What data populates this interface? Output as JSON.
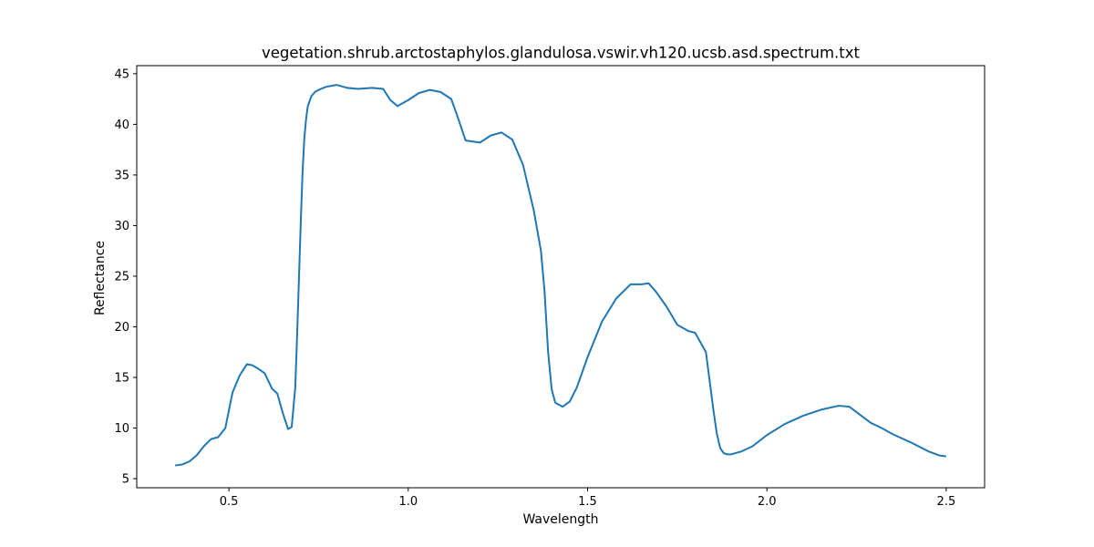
{
  "chart_data": {
    "type": "line",
    "title": "vegetation.shrub.arctostaphylos.glandulosa.vswir.vh120.ucsb.asd.spectrum.txt",
    "xlabel": "Wavelength",
    "ylabel": "Reflectance",
    "xlim": [
      0.243,
      2.607
    ],
    "ylim": [
      4.1,
      45.8
    ],
    "xticks": [
      0.5,
      1.0,
      1.5,
      2.0,
      2.5
    ],
    "xtick_labels": [
      "0.5",
      "1.0",
      "1.5",
      "2.0",
      "2.5"
    ],
    "yticks": [
      5,
      10,
      15,
      20,
      25,
      30,
      35,
      40,
      45
    ],
    "ytick_labels": [
      "5",
      "10",
      "15",
      "20",
      "25",
      "30",
      "35",
      "40",
      "45"
    ],
    "grid": false,
    "series": [
      {
        "name": "spectrum",
        "color": "#1f77b4",
        "x": [
          0.35,
          0.37,
          0.39,
          0.41,
          0.43,
          0.45,
          0.47,
          0.49,
          0.51,
          0.53,
          0.55,
          0.565,
          0.58,
          0.6,
          0.62,
          0.635,
          0.65,
          0.665,
          0.675,
          0.685,
          0.69,
          0.695,
          0.7,
          0.705,
          0.71,
          0.715,
          0.72,
          0.73,
          0.74,
          0.75,
          0.77,
          0.8,
          0.83,
          0.86,
          0.9,
          0.93,
          0.95,
          0.97,
          1.0,
          1.03,
          1.06,
          1.09,
          1.12,
          1.14,
          1.16,
          1.2,
          1.23,
          1.26,
          1.29,
          1.32,
          1.35,
          1.37,
          1.38,
          1.39,
          1.4,
          1.41,
          1.43,
          1.45,
          1.47,
          1.5,
          1.54,
          1.58,
          1.62,
          1.65,
          1.67,
          1.69,
          1.72,
          1.75,
          1.78,
          1.8,
          1.83,
          1.85,
          1.86,
          1.87,
          1.88,
          1.89,
          1.9,
          1.93,
          1.96,
          2.0,
          2.05,
          2.1,
          2.15,
          2.2,
          2.23,
          2.26,
          2.29,
          2.32,
          2.35,
          2.4,
          2.45,
          2.48,
          2.5
        ],
        "values": [
          6.3,
          6.4,
          6.7,
          7.3,
          8.2,
          8.9,
          9.1,
          10.0,
          13.5,
          15.2,
          16.3,
          16.2,
          15.9,
          15.4,
          13.9,
          13.4,
          11.5,
          9.9,
          10.1,
          14.0,
          19.0,
          24.5,
          30.0,
          35.0,
          38.5,
          40.5,
          41.8,
          42.8,
          43.2,
          43.4,
          43.7,
          43.9,
          43.6,
          43.5,
          43.6,
          43.5,
          42.4,
          41.8,
          42.4,
          43.1,
          43.4,
          43.2,
          42.5,
          40.5,
          38.4,
          38.2,
          38.9,
          39.2,
          38.5,
          36.0,
          31.5,
          27.5,
          23.5,
          17.5,
          13.8,
          12.5,
          12.1,
          12.6,
          14.0,
          17.0,
          20.5,
          22.8,
          24.2,
          24.2,
          24.3,
          23.5,
          22.0,
          20.2,
          19.6,
          19.4,
          17.5,
          12.0,
          9.5,
          8.0,
          7.5,
          7.4,
          7.4,
          7.7,
          8.2,
          9.3,
          10.4,
          11.2,
          11.8,
          12.2,
          12.1,
          11.3,
          10.5,
          10.0,
          9.4,
          8.6,
          7.7,
          7.3,
          7.2
        ]
      }
    ]
  }
}
